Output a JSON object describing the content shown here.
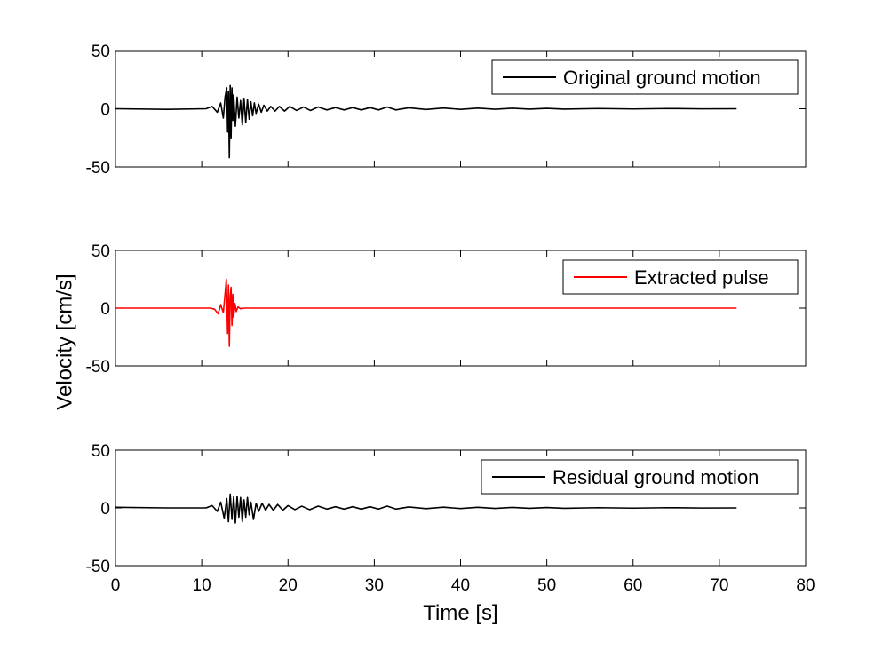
{
  "chart_data": [
    {
      "type": "line",
      "xlim": [
        0,
        80
      ],
      "ylim": [
        -50,
        50
      ],
      "x_ticks": [
        "0",
        "10",
        "20",
        "30",
        "40",
        "50",
        "60",
        "70",
        "80"
      ],
      "y_ticks": [
        "50",
        "0",
        "-50"
      ],
      "show_x_tick_labels": false,
      "grid": false,
      "legend_position": "top-right",
      "series": [
        {
          "name": "Original ground motion",
          "color": "#000000",
          "x": [
            0,
            6,
            10.5,
            11.2,
            11.8,
            12.2,
            12.5,
            12.7,
            12.9,
            13.0,
            13.1,
            13.2,
            13.3,
            13.4,
            13.5,
            13.6,
            13.7,
            13.9,
            14.1,
            14.3,
            14.5,
            14.7,
            14.9,
            15.1,
            15.3,
            15.5,
            15.7,
            15.9,
            16.1,
            16.3,
            16.6,
            16.9,
            17.2,
            17.6,
            18.0,
            18.5,
            19.0,
            19.6,
            20.2,
            21.0,
            21.8,
            22.6,
            23.5,
            24.5,
            25.5,
            26.5,
            27.5,
            28.5,
            29.5,
            30.5,
            31.5,
            32.5,
            34,
            36,
            38,
            40,
            42,
            44,
            46,
            48,
            50,
            52,
            56,
            60,
            64,
            68,
            72
          ],
          "y": [
            0,
            -0.5,
            0,
            2,
            -3,
            5,
            -8,
            10,
            18,
            -20,
            15,
            -42,
            20,
            -25,
            18,
            -10,
            12,
            -15,
            10,
            -8,
            7,
            -14,
            9,
            -12,
            8,
            -9,
            6,
            -6,
            5,
            -4,
            4,
            -3,
            3,
            -2,
            2,
            -2,
            2,
            -2,
            2,
            -1.5,
            1.5,
            -1.5,
            1.5,
            -1,
            1,
            -1,
            1,
            -1,
            1,
            -1,
            1.5,
            -1,
            0.8,
            -0.6,
            0.6,
            -0.5,
            0.5,
            -0.4,
            0.4,
            -0.3,
            0.3,
            -0.3,
            0.2,
            -0.2,
            0.2,
            -0.1,
            0
          ]
        }
      ]
    },
    {
      "type": "line",
      "xlim": [
        0,
        80
      ],
      "ylim": [
        -50,
        50
      ],
      "x_ticks": [
        "0",
        "10",
        "20",
        "30",
        "40",
        "50",
        "60",
        "70",
        "80"
      ],
      "y_ticks": [
        "50",
        "0",
        "-50"
      ],
      "show_x_tick_labels": false,
      "grid": false,
      "legend_position": "top-right",
      "series": [
        {
          "name": "Extracted pulse",
          "color": "#ff0000",
          "x": [
            0,
            11.0,
            11.5,
            11.9,
            12.2,
            12.5,
            12.7,
            12.85,
            13.0,
            13.1,
            13.2,
            13.3,
            13.4,
            13.5,
            13.6,
            13.7,
            13.85,
            14.0,
            14.2,
            14.5,
            15.0,
            72
          ],
          "y": [
            0,
            0,
            -1,
            -5,
            3,
            -4,
            12,
            25,
            -22,
            20,
            -33,
            10,
            18,
            -15,
            12,
            -8,
            4,
            -3,
            1,
            -0.5,
            0,
            0
          ]
        }
      ]
    },
    {
      "type": "line",
      "xlim": [
        0,
        80
      ],
      "ylim": [
        -50,
        50
      ],
      "x_ticks": [
        "0",
        "10",
        "20",
        "30",
        "40",
        "50",
        "60",
        "70",
        "80"
      ],
      "y_ticks": [
        "50",
        "0",
        "-50"
      ],
      "show_x_tick_labels": true,
      "xlabel": "Time [s]",
      "grid": false,
      "legend_position": "top-right",
      "series": [
        {
          "name": "Residual ground motion",
          "color": "#000000",
          "x": [
            0,
            6,
            10.5,
            11.2,
            11.8,
            12.2,
            12.6,
            12.9,
            13.1,
            13.3,
            13.5,
            13.7,
            13.9,
            14.1,
            14.3,
            14.5,
            14.7,
            14.9,
            15.1,
            15.3,
            15.5,
            15.7,
            16.0,
            16.3,
            16.6,
            17.0,
            17.4,
            17.8,
            18.3,
            18.8,
            19.4,
            20.0,
            20.8,
            21.6,
            22.5,
            23.5,
            24.5,
            25.5,
            26.5,
            27.5,
            28.5,
            29.5,
            30.5,
            31.5,
            32.5,
            34,
            36,
            38,
            40,
            42,
            44,
            46,
            48,
            50,
            52,
            56,
            60,
            64,
            68,
            72
          ],
          "y": [
            0.5,
            0,
            0,
            2,
            -3,
            5,
            -9,
            8,
            -12,
            12,
            -10,
            10,
            -13,
            10,
            -8,
            9,
            -12,
            7,
            -8,
            9,
            -6,
            5,
            -10,
            4,
            -3,
            4,
            -2,
            3,
            -2,
            3,
            -2,
            2,
            -1.5,
            1.5,
            -1.5,
            1.5,
            -1,
            1,
            -1,
            1,
            -1,
            1,
            -1,
            1.5,
            -1,
            0.8,
            -0.6,
            0.6,
            -0.5,
            0.5,
            -0.4,
            0.4,
            -0.3,
            0.3,
            -0.3,
            0.2,
            -0.2,
            0.2,
            -0.1,
            0
          ]
        }
      ]
    }
  ],
  "ylabel": "Velocity [cm/s]"
}
